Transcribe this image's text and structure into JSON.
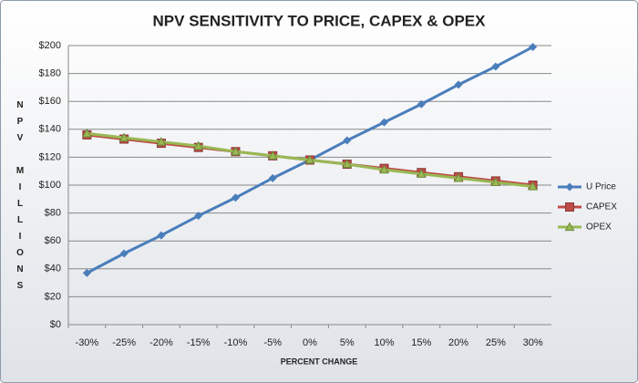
{
  "chart_data": {
    "type": "line",
    "title": "NPV SENSITIVITY TO PRICE, CAPEX & OPEX",
    "xlabel": "PERCENT CHANGE",
    "ylabel": "NPV MILLIONS",
    "categories": [
      "-30%",
      "-25%",
      "-20%",
      "-15%",
      "-10%",
      "-5%",
      "0%",
      "5%",
      "10%",
      "15%",
      "20%",
      "25%",
      "30%"
    ],
    "series": [
      {
        "name": "U Price",
        "color": "#4a7ebb",
        "marker": "diamond",
        "values": [
          37,
          51,
          64,
          78,
          91,
          105,
          118,
          132,
          145,
          158,
          172,
          185,
          199
        ]
      },
      {
        "name": "CAPEX",
        "color": "#be4b48",
        "marker": "square",
        "values": [
          136,
          133,
          130,
          127,
          124,
          121,
          118,
          115,
          112,
          109,
          106,
          103,
          100
        ]
      },
      {
        "name": "OPEX",
        "color": "#98b954",
        "marker": "triangle",
        "values": [
          137,
          134,
          131,
          128,
          124,
          121,
          118,
          115,
          111,
          108,
          105,
          102,
          99
        ]
      }
    ],
    "ylim": [
      0,
      200
    ],
    "yticks": [
      {
        "value": 0,
        "label": "$0"
      },
      {
        "value": 20,
        "label": "$20"
      },
      {
        "value": 40,
        "label": "$40"
      },
      {
        "value": 60,
        "label": "$60"
      },
      {
        "value": 80,
        "label": "$80"
      },
      {
        "value": 100,
        "label": "$100"
      },
      {
        "value": 120,
        "label": "$120"
      },
      {
        "value": 140,
        "label": "$140"
      },
      {
        "value": 160,
        "label": "$160"
      },
      {
        "value": 180,
        "label": "$180"
      },
      {
        "value": 200,
        "label": "$200"
      }
    ],
    "grid": true,
    "legend": "right"
  }
}
